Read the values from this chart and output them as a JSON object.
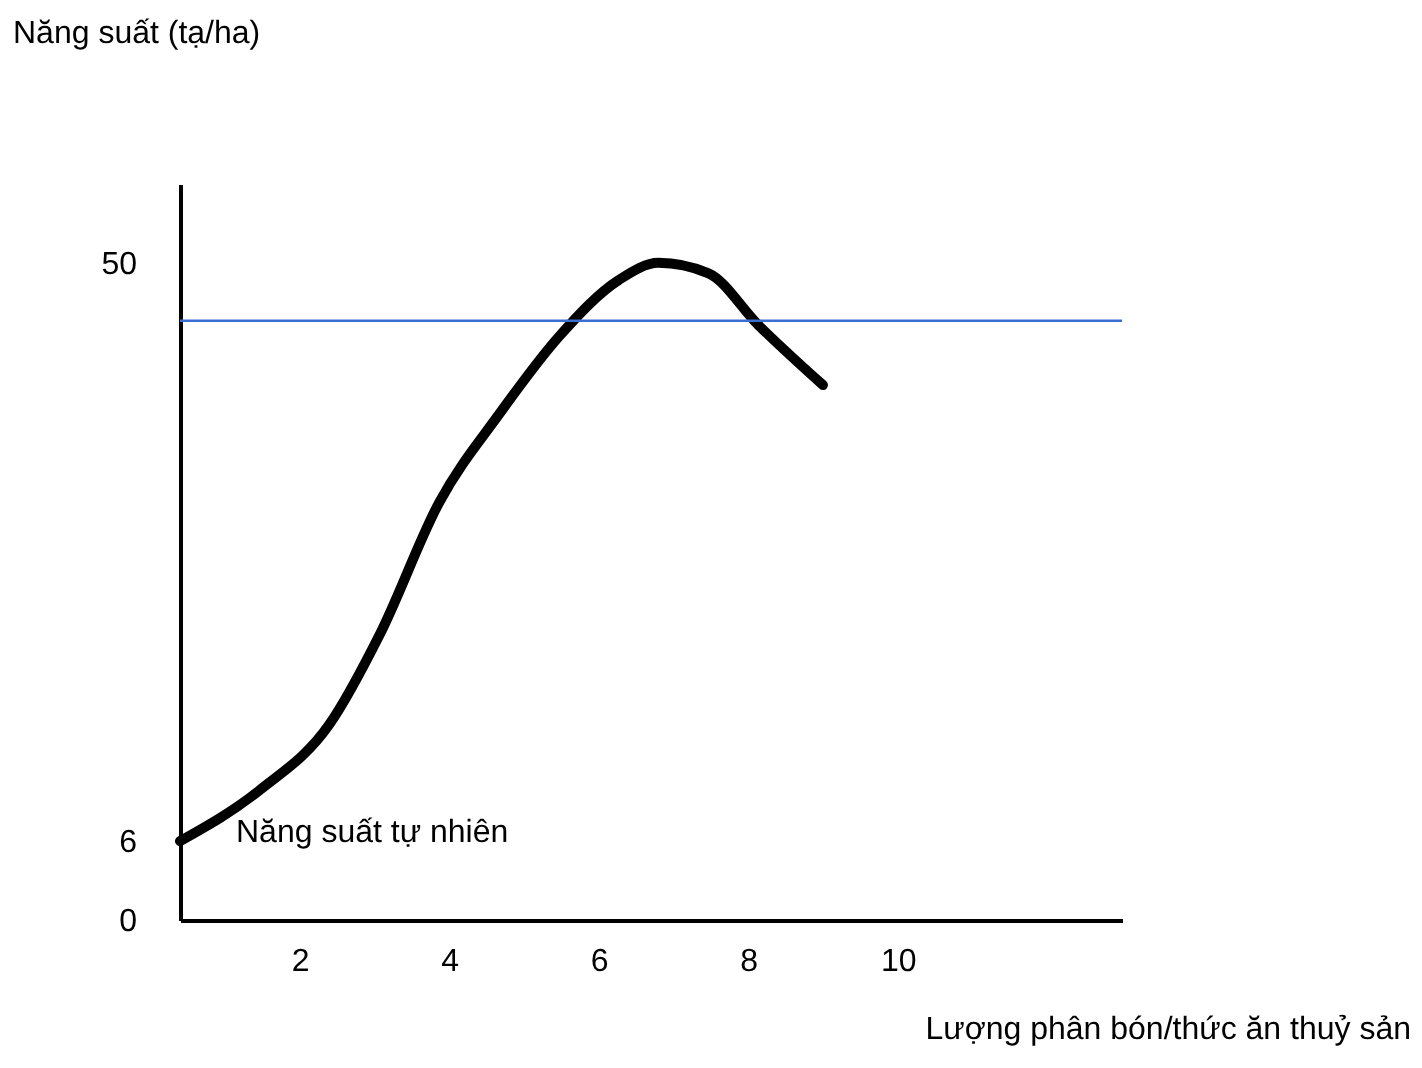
{
  "chart_data": {
    "type": "line",
    "xlabel": "Lượng phân bón/thức ăn thuỷ sản",
    "ylabel": "Năng suất (tạ/ha)",
    "x": [
      0.4,
      1.47,
      2.4,
      3.07,
      3.87,
      4.67,
      5.47,
      6.27,
      6.8,
      7.47,
      8.13,
      9.0
    ],
    "series": [
      {
        "color": "#000000",
        "values": [
          6,
          9.9,
          14.9,
          21.7,
          31.8,
          38.5,
          44.4,
          48.7,
          50,
          49.2,
          45.3,
          40.7
        ]
      }
    ],
    "xlim": [
      0.4,
      13
    ],
    "ylim": [
      0,
      56
    ],
    "xticks": [
      2,
      4,
      6,
      8,
      10
    ],
    "yticks": [
      0,
      6,
      50
    ],
    "ref_lines": [
      {
        "axis": "y",
        "value": 45.6,
        "color": "#3a6fd0"
      }
    ],
    "annotations": [
      "Năng suất tự nhiên"
    ],
    "grid": false,
    "marker": "none",
    "line_style": "solid"
  }
}
